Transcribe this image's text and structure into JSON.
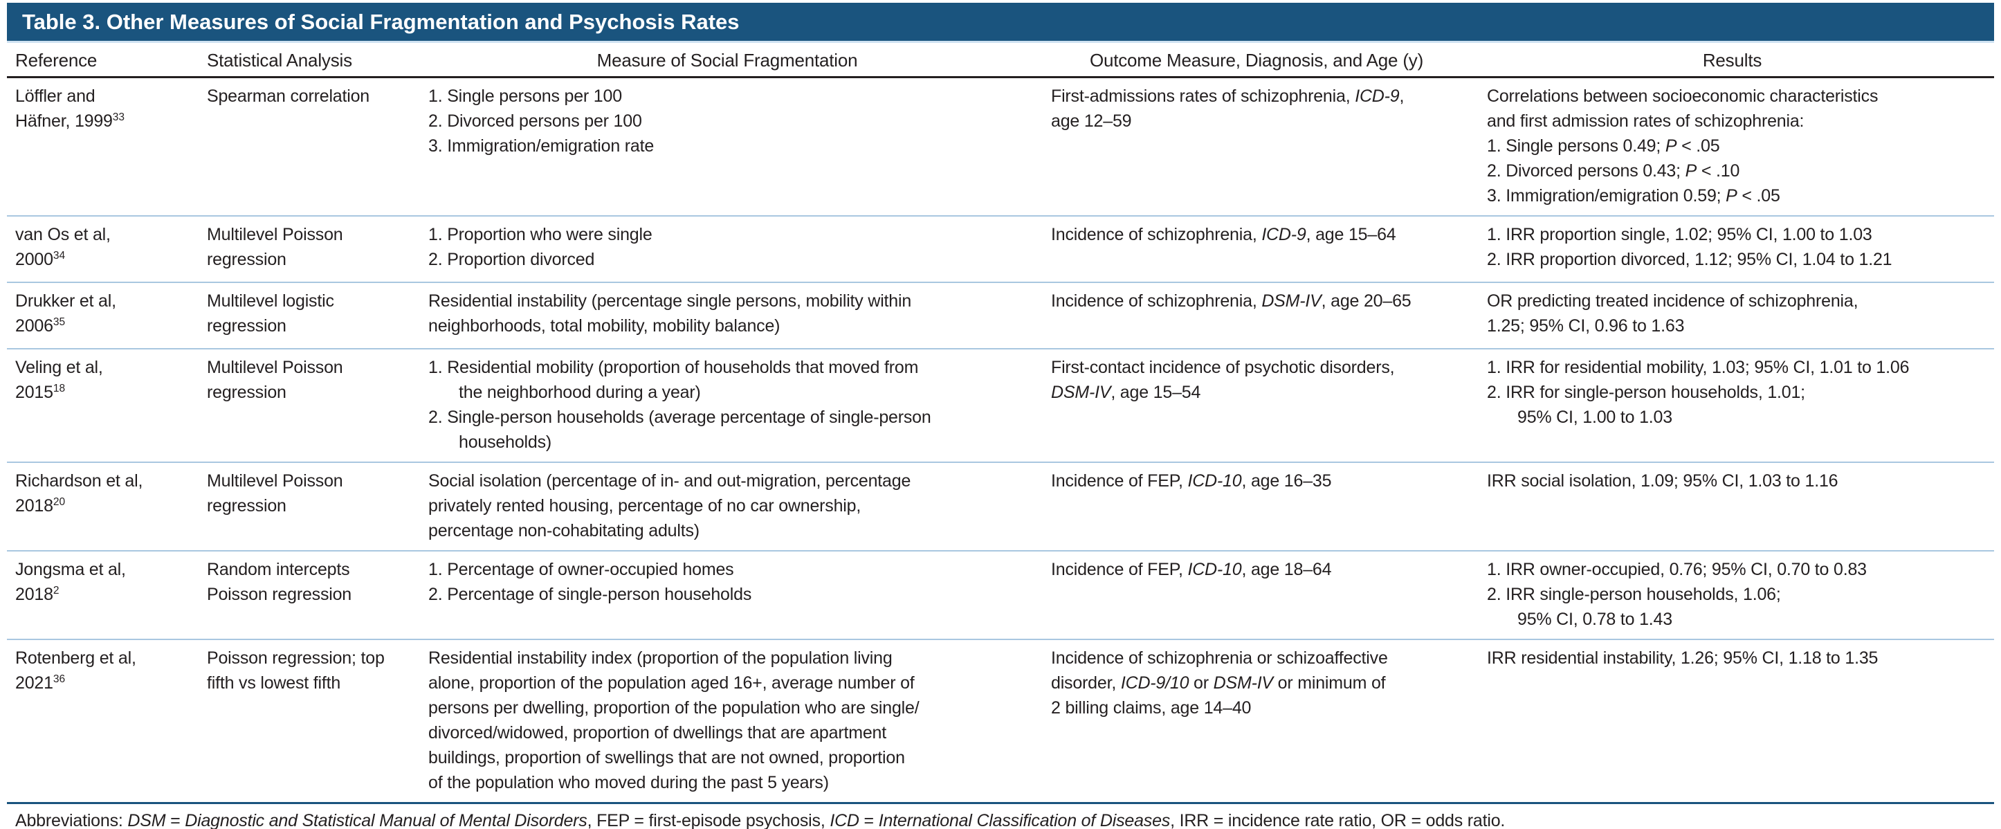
{
  "title": "Table 3. Other Measures of Social Fragmentation and Psychosis Rates",
  "colors": {
    "header_bar": "#1a547e",
    "header_bar_text": "#ffffff",
    "body_text": "#231f20",
    "row_divider": "#a9c7e0",
    "header_rule": "#231f20",
    "dark_rule": "#1a547e"
  },
  "columns": [
    "Reference",
    "Statistical Analysis",
    "Measure of Social Fragmentation",
    "Outcome Measure, Diagnosis, and Age (y)",
    "Results"
  ],
  "rows": [
    {
      "reference": [
        {
          "t": "Löffler and"
        },
        {
          "br": true
        },
        {
          "t": "Häfner, 1999"
        },
        {
          "t": "33",
          "sup": true
        }
      ],
      "analysis": "Spearman correlation",
      "measure": [
        {
          "hang": true,
          "segs": [
            {
              "t": "1. Single persons per 100"
            }
          ]
        },
        {
          "hang": true,
          "segs": [
            {
              "t": "2. Divorced persons per 100"
            }
          ]
        },
        {
          "hang": true,
          "segs": [
            {
              "t": "3. Immigration/emigration rate"
            }
          ]
        }
      ],
      "outcome": [
        {
          "t": "First-admissions rates of schizophrenia, "
        },
        {
          "t": "ICD-9",
          "i": true
        },
        {
          "t": ","
        },
        {
          "br": true
        },
        {
          "t": "age 12–59"
        }
      ],
      "results": [
        {
          "hang": false,
          "segs": [
            {
              "t": "Correlations between socioeconomic characteristics"
            },
            {
              "br": true
            },
            {
              "t": "and first admission rates of schizophrenia:"
            }
          ]
        },
        {
          "hang": true,
          "segs": [
            {
              "t": "1. Single persons 0.49; "
            },
            {
              "t": "P",
              "i": true
            },
            {
              "t": " < .05"
            }
          ]
        },
        {
          "hang": true,
          "segs": [
            {
              "t": "2. Divorced persons 0.43; "
            },
            {
              "t": "P",
              "i": true
            },
            {
              "t": " < .10"
            }
          ]
        },
        {
          "hang": true,
          "segs": [
            {
              "t": "3. Immigration/emigration 0.59; "
            },
            {
              "t": "P",
              "i": true
            },
            {
              "t": " < .05"
            }
          ]
        }
      ]
    },
    {
      "reference": [
        {
          "t": "van Os et al,"
        },
        {
          "br": true
        },
        {
          "t": "2000"
        },
        {
          "t": "34",
          "sup": true
        }
      ],
      "analysis": "Multilevel Poisson regression",
      "measure": [
        {
          "hang": true,
          "segs": [
            {
              "t": "1. Proportion who were single"
            }
          ]
        },
        {
          "hang": true,
          "segs": [
            {
              "t": "2. Proportion divorced"
            }
          ]
        }
      ],
      "outcome": [
        {
          "t": "Incidence of schizophrenia, "
        },
        {
          "t": "ICD-9",
          "i": true
        },
        {
          "t": ", age 15–64"
        }
      ],
      "results": [
        {
          "hang": true,
          "segs": [
            {
              "t": "1. IRR proportion single, 1.02; 95% CI, 1.00 to 1.03"
            }
          ]
        },
        {
          "hang": true,
          "segs": [
            {
              "t": "2. IRR proportion divorced, 1.12; 95% CI, 1.04 to 1.21"
            }
          ]
        }
      ]
    },
    {
      "reference": [
        {
          "t": "Drukker et al,"
        },
        {
          "br": true
        },
        {
          "t": "2006"
        },
        {
          "t": "35",
          "sup": true
        }
      ],
      "analysis": "Multilevel logistic regression",
      "measure": [
        {
          "hang": false,
          "segs": [
            {
              "t": "Residential instability (percentage single persons, mobility within"
            },
            {
              "br": true
            },
            {
              "t": "neighborhoods, total mobility, mobility balance)"
            }
          ]
        }
      ],
      "outcome": [
        {
          "t": "Incidence of schizophrenia, "
        },
        {
          "t": "DSM-IV",
          "i": true
        },
        {
          "t": ", age 20–65"
        }
      ],
      "results": [
        {
          "hang": false,
          "segs": [
            {
              "t": "OR predicting treated incidence of schizophrenia,"
            },
            {
              "br": true
            },
            {
              "t": "1.25; 95% CI, 0.96 to 1.63"
            }
          ]
        }
      ]
    },
    {
      "reference": [
        {
          "t": "Veling et al,"
        },
        {
          "br": true
        },
        {
          "t": "2015"
        },
        {
          "t": "18",
          "sup": true
        }
      ],
      "analysis": "Multilevel Poisson regression",
      "measure": [
        {
          "hang": true,
          "segs": [
            {
              "t": "1. Residential mobility (proportion of households that moved from"
            },
            {
              "br": true
            },
            {
              "t": "the neighborhood during a year)"
            }
          ]
        },
        {
          "hang": true,
          "segs": [
            {
              "t": "2. Single-person households (average percentage of single-person"
            },
            {
              "br": true
            },
            {
              "t": "households)"
            }
          ]
        }
      ],
      "outcome": [
        {
          "t": "First-contact incidence of psychotic disorders,"
        },
        {
          "br": true
        },
        {
          "t": "DSM-IV",
          "i": true
        },
        {
          "t": ", age 15–54"
        }
      ],
      "results": [
        {
          "hang": true,
          "segs": [
            {
              "t": "1. IRR for residential mobility, 1.03; 95% CI, 1.01 to 1.06"
            }
          ]
        },
        {
          "hang": true,
          "segs": [
            {
              "t": "2. IRR for single-person households, 1.01;"
            },
            {
              "br": true
            },
            {
              "t": "95% CI, 1.00 to 1.03"
            }
          ]
        }
      ]
    },
    {
      "reference": [
        {
          "t": "Richardson et al,"
        },
        {
          "br": true
        },
        {
          "t": "2018"
        },
        {
          "t": "20",
          "sup": true
        }
      ],
      "analysis": "Multilevel Poisson regression",
      "measure": [
        {
          "hang": false,
          "segs": [
            {
              "t": "Social isolation (percentage of in- and out-migration, percentage"
            },
            {
              "br": true
            },
            {
              "t": "privately rented housing, percentage of no car ownership,"
            },
            {
              "br": true
            },
            {
              "t": "percentage non-cohabitating adults)"
            }
          ]
        }
      ],
      "outcome": [
        {
          "t": "Incidence of FEP, "
        },
        {
          "t": "ICD-10",
          "i": true
        },
        {
          "t": ", age 16–35"
        }
      ],
      "results": [
        {
          "hang": false,
          "segs": [
            {
              "t": "IRR social isolation, 1.09; 95% CI, 1.03 to 1.16"
            }
          ]
        }
      ]
    },
    {
      "reference": [
        {
          "t": "Jongsma et al,"
        },
        {
          "br": true
        },
        {
          "t": "2018"
        },
        {
          "t": "2",
          "sup": true
        }
      ],
      "analysis": "Random intercepts Poisson regression",
      "measure": [
        {
          "hang": true,
          "segs": [
            {
              "t": "1. Percentage of owner-occupied homes"
            }
          ]
        },
        {
          "hang": true,
          "segs": [
            {
              "t": "2. Percentage of single-person households"
            }
          ]
        }
      ],
      "outcome": [
        {
          "t": "Incidence of FEP, "
        },
        {
          "t": "ICD-10",
          "i": true
        },
        {
          "t": ", age 18–64"
        }
      ],
      "results": [
        {
          "hang": true,
          "segs": [
            {
              "t": "1. IRR owner-occupied, 0.76; 95% CI, 0.70 to 0.83"
            }
          ]
        },
        {
          "hang": true,
          "segs": [
            {
              "t": "2. IRR single-person households, 1.06;"
            },
            {
              "br": true
            },
            {
              "t": "95% CI, 0.78 to 1.43"
            }
          ]
        }
      ]
    },
    {
      "reference": [
        {
          "t": "Rotenberg et al,"
        },
        {
          "br": true
        },
        {
          "t": "2021"
        },
        {
          "t": "36",
          "sup": true
        }
      ],
      "analysis": "Poisson regression; top fifth vs lowest fifth",
      "measure": [
        {
          "hang": false,
          "segs": [
            {
              "t": "Residential instability index (proportion of the population living"
            },
            {
              "br": true
            },
            {
              "t": "alone, proportion of the population aged 16+, average number of"
            },
            {
              "br": true
            },
            {
              "t": "persons per dwelling, proportion of the population who are single/"
            },
            {
              "br": true
            },
            {
              "t": "divorced/widowed, proportion of dwellings that are apartment"
            },
            {
              "br": true
            },
            {
              "t": "buildings, proportion of swellings that are not owned, proportion"
            },
            {
              "br": true
            },
            {
              "t": "of the population who moved during the past 5 years)"
            }
          ]
        }
      ],
      "outcome": [
        {
          "t": "Incidence of schizophrenia or schizoaffective"
        },
        {
          "br": true
        },
        {
          "t": "disorder, "
        },
        {
          "t": "ICD-9/10",
          "i": true
        },
        {
          "t": " or "
        },
        {
          "t": "DSM-IV",
          "i": true
        },
        {
          "t": " or minimum of"
        },
        {
          "br": true
        },
        {
          "t": "2 billing claims, age 14–40"
        }
      ],
      "results": [
        {
          "hang": false,
          "segs": [
            {
              "t": "IRR residential instability, 1.26; 95% CI, 1.18 to 1.35"
            }
          ]
        }
      ]
    }
  ],
  "footer": [
    {
      "t": "Abbreviations: "
    },
    {
      "t": "DSM",
      "i": true
    },
    {
      "t": " = "
    },
    {
      "t": "Diagnostic and Statistical Manual of Mental Disorders",
      "i": true
    },
    {
      "t": ", FEP = first-episode psychosis, "
    },
    {
      "t": "ICD",
      "i": true
    },
    {
      "t": " = "
    },
    {
      "t": "International Classification of Diseases",
      "i": true
    },
    {
      "t": ", IRR = incidence rate ratio, OR = odds ratio."
    }
  ]
}
